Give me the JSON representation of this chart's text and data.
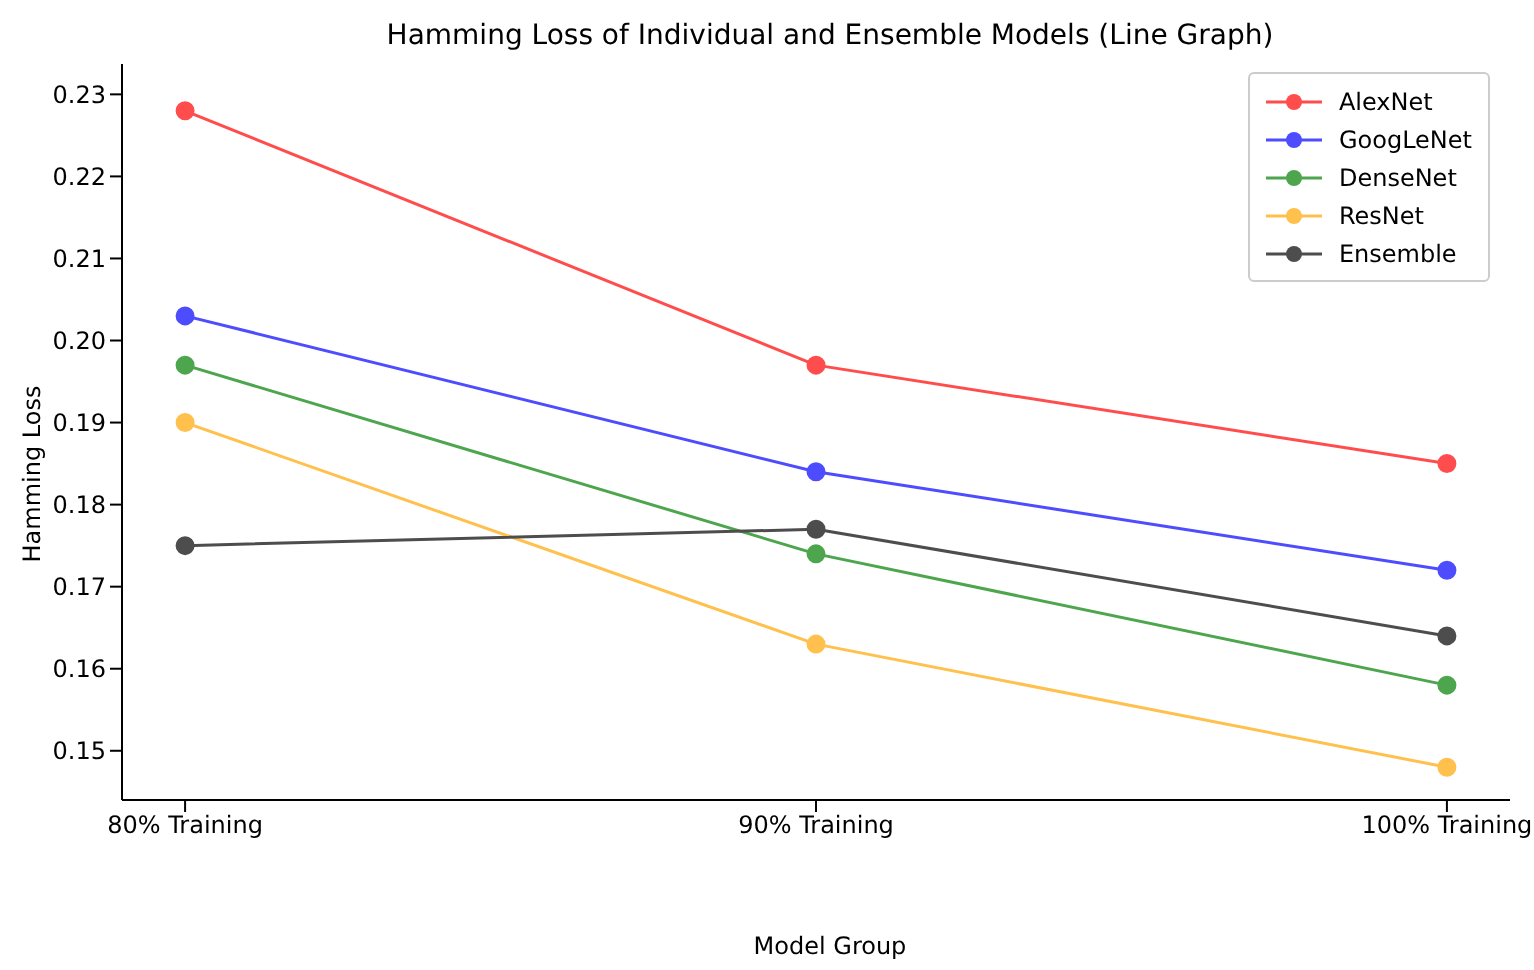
{
  "chart_data": {
    "type": "line",
    "title": "Hamming Loss of Individual and Ensemble Models (Line Graph)",
    "xlabel": "Model Group",
    "ylabel": "Hamming Loss",
    "categories": [
      "80% Training",
      "90% Training",
      "100% Training"
    ],
    "series": [
      {
        "name": "AlexNet",
        "color": "#ff4d4d",
        "values": [
          0.228,
          0.197,
          0.185
        ]
      },
      {
        "name": "GoogLeNet",
        "color": "#4d4dff",
        "values": [
          0.203,
          0.184,
          0.172
        ]
      },
      {
        "name": "DenseNet",
        "color": "#4da64d",
        "values": [
          0.197,
          0.174,
          0.158
        ]
      },
      {
        "name": "ResNet",
        "color": "#ffc04d",
        "values": [
          0.19,
          0.163,
          0.148
        ]
      },
      {
        "name": "Ensemble",
        "color": "#4d4d4d",
        "values": [
          0.175,
          0.177,
          0.164
        ]
      }
    ],
    "ylim": [
      0.144,
      0.2337
    ],
    "yticks": [
      0.15,
      0.16,
      0.17,
      0.18,
      0.19,
      {
        "value": 0.2,
        "label": "0.20"
      },
      0.21,
      0.22,
      0.23
    ],
    "legend": "top right",
    "marker": "circle",
    "line_style": "solid"
  }
}
